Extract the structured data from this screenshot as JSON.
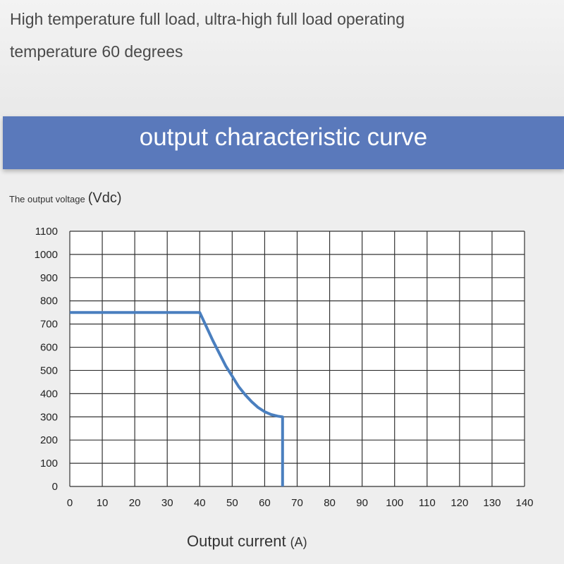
{
  "header": {
    "line1": "High temperature full load, ultra-high full load operating",
    "line2": "temperature 60 degrees"
  },
  "banner": {
    "title": "output characteristic curve",
    "color": "#5a79bb"
  },
  "chart_data": {
    "type": "line",
    "title": "output characteristic curve",
    "ylabel_main": "The output voltage",
    "ylabel_unit": "(Vdc)",
    "xlabel_main": "Output current",
    "xlabel_unit": "(A)",
    "xlim": [
      0,
      140
    ],
    "ylim": [
      0,
      1100
    ],
    "x_ticks": [
      0,
      10,
      20,
      30,
      40,
      50,
      60,
      70,
      80,
      90,
      100,
      110,
      120,
      130,
      140
    ],
    "y_ticks": [
      0,
      100,
      200,
      300,
      400,
      500,
      600,
      700,
      800,
      900,
      1000,
      1100
    ],
    "grid": true,
    "line_color": "#4a7fbf",
    "series": [
      {
        "points": [
          [
            0,
            750
          ],
          [
            40,
            750
          ],
          [
            42,
            690
          ],
          [
            44,
            630
          ],
          [
            46,
            575
          ],
          [
            48,
            520
          ],
          [
            50,
            475
          ],
          [
            52,
            430
          ],
          [
            54,
            395
          ],
          [
            56,
            365
          ],
          [
            58,
            340
          ],
          [
            60,
            322
          ],
          [
            62,
            310
          ],
          [
            64,
            303
          ],
          [
            65.5,
            300
          ],
          [
            65.5,
            0
          ]
        ]
      }
    ]
  }
}
